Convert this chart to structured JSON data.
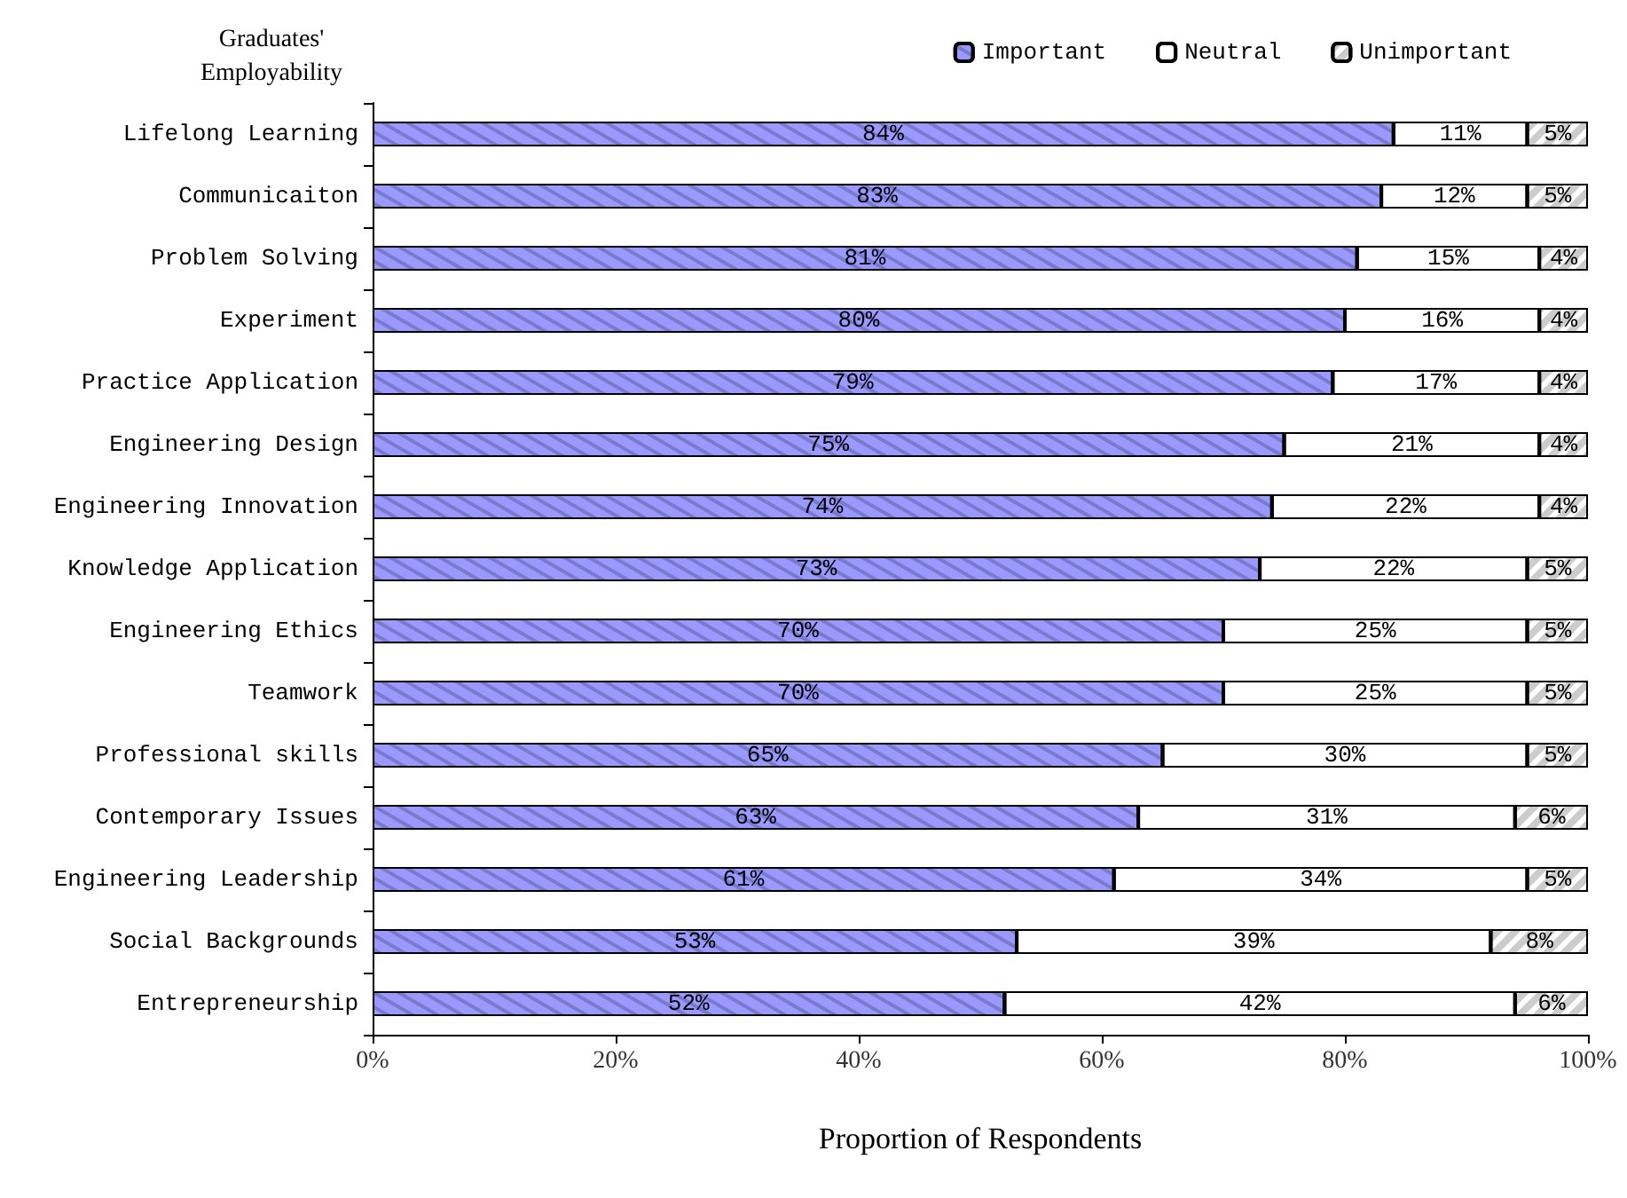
{
  "chart_data": {
    "type": "bar",
    "orientation": "horizontal",
    "stacked": true,
    "ylabel": "Graduates'\nEmployability",
    "xlabel": "Proportion of Respondents",
    "categories": [
      "Lifelong Learning",
      "Communicaiton",
      "Problem Solving",
      "Experiment",
      "Practice Application",
      "Engineering Design",
      "Engineering Innovation",
      "Knowledge Application",
      "Engineering Ethics",
      "Teamwork",
      "Professional skills",
      "Contemporary Issues",
      "Engineering Leadership",
      "Social Backgrounds",
      "Entrepreneurship"
    ],
    "series": [
      {
        "name": "Important",
        "color": "#9999ff",
        "values": [
          84,
          83,
          81,
          80,
          79,
          75,
          74,
          73,
          70,
          70,
          65,
          63,
          61,
          53,
          52
        ],
        "value_labels": [
          "84%",
          "83%",
          "81%",
          "80%",
          "79%",
          "75%",
          "74%",
          "73%",
          "70%",
          "70%",
          "65%",
          "63%",
          "61%",
          "53%",
          "52%"
        ]
      },
      {
        "name": "Neutral",
        "color": "#ffffff",
        "values": [
          11,
          12,
          15,
          16,
          17,
          21,
          22,
          22,
          25,
          25,
          30,
          31,
          34,
          39,
          42
        ],
        "value_labels": [
          "11%",
          "12%",
          "15%",
          "16%",
          "17%",
          "21%",
          "22%",
          "22%",
          "25%",
          "25%",
          "30%",
          "31%",
          "34%",
          "39%",
          "42%"
        ]
      },
      {
        "name": "Unimportant",
        "color": "#ffffff",
        "values": [
          5,
          5,
          4,
          4,
          4,
          4,
          4,
          5,
          5,
          5,
          5,
          6,
          5,
          8,
          6
        ],
        "value_labels": [
          "5%",
          "5%",
          "4%",
          "4%",
          "4%",
          "4%",
          "4%",
          "5%",
          "5%",
          "5%",
          "5%",
          "6%",
          "5%",
          "8%",
          "6%"
        ]
      }
    ],
    "xlim": [
      0,
      100
    ],
    "xticks": [
      {
        "value": 0,
        "label": "0%"
      },
      {
        "value": 20,
        "label": "20%"
      },
      {
        "value": 40,
        "label": "40%"
      },
      {
        "value": 60,
        "label": "60%"
      },
      {
        "value": 80,
        "label": "80%"
      },
      {
        "value": 100,
        "label": "100%"
      }
    ],
    "legend": "top right",
    "grid": false
  }
}
